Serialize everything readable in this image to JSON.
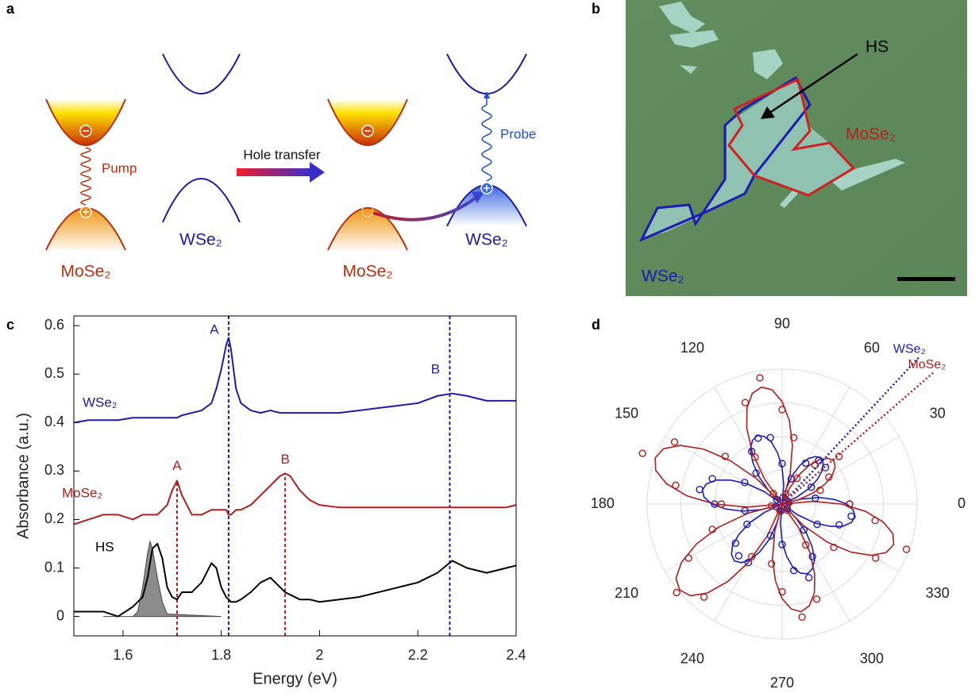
{
  "figure": {
    "panels": [
      "a",
      "b",
      "c",
      "d"
    ],
    "diagram": {
      "pump": "Pump",
      "transfer": "Hole transfer",
      "probe": "Probe",
      "materials": [
        "MoSe₂",
        "WSe₂",
        "MoSe₂",
        "WSe₂"
      ]
    },
    "image": {
      "pointer": "HS",
      "materials": [
        "MoSe₂",
        "WSe₂"
      ]
    }
  },
  "chart_data": [
    {
      "type": "line",
      "xlabel": "Energy (eV)",
      "ylabel": "Absorbance (a.u.)",
      "x": [
        1.5,
        1.53,
        1.56,
        1.59,
        1.62,
        1.64,
        1.65,
        1.66,
        1.67,
        1.68,
        1.69,
        1.7,
        1.71,
        1.72,
        1.74,
        1.76,
        1.78,
        1.79,
        1.8,
        1.81,
        1.815,
        1.82,
        1.83,
        1.84,
        1.86,
        1.88,
        1.9,
        1.92,
        1.93,
        1.94,
        1.96,
        1.98,
        2.0,
        2.04,
        2.08,
        2.12,
        2.16,
        2.2,
        2.24,
        2.27,
        2.3,
        2.34,
        2.38,
        2.4
      ],
      "series": [
        {
          "name": "WSe₂",
          "color": "#1c1ca6",
          "values": [
            0.4,
            0.405,
            0.405,
            0.405,
            0.41,
            0.41,
            0.41,
            0.41,
            0.41,
            0.41,
            0.41,
            0.41,
            0.41,
            0.415,
            0.42,
            0.425,
            0.44,
            0.47,
            0.51,
            0.56,
            0.575,
            0.55,
            0.47,
            0.44,
            0.425,
            0.42,
            0.425,
            0.42,
            0.42,
            0.42,
            0.42,
            0.42,
            0.42,
            0.42,
            0.425,
            0.43,
            0.435,
            0.44,
            0.455,
            0.46,
            0.455,
            0.445,
            0.445,
            0.445
          ]
        },
        {
          "name": "MoSe₂",
          "color": "#b01d1d",
          "values": [
            0.19,
            0.2,
            0.21,
            0.21,
            0.2,
            0.21,
            0.21,
            0.21,
            0.21,
            0.22,
            0.23,
            0.26,
            0.28,
            0.25,
            0.21,
            0.21,
            0.22,
            0.22,
            0.22,
            0.22,
            0.21,
            0.21,
            0.22,
            0.22,
            0.23,
            0.25,
            0.27,
            0.29,
            0.295,
            0.29,
            0.26,
            0.24,
            0.23,
            0.225,
            0.225,
            0.225,
            0.225,
            0.225,
            0.225,
            0.225,
            0.225,
            0.225,
            0.225,
            0.23
          ]
        },
        {
          "name": "HS",
          "color": "#000000",
          "values": [
            0.01,
            0.01,
            0.01,
            0,
            0.02,
            0.04,
            0.08,
            0.14,
            0.15,
            0.12,
            0.06,
            0.04,
            0.035,
            0.05,
            0.05,
            0.07,
            0.11,
            0.1,
            0.06,
            0.04,
            0.035,
            0.03,
            0.03,
            0.035,
            0.05,
            0.07,
            0.08,
            0.06,
            0.05,
            0.045,
            0.035,
            0.035,
            0.03,
            0.035,
            0.04,
            0.05,
            0.06,
            0.07,
            0.09,
            0.115,
            0.1,
            0.09,
            0.1,
            0.105
          ]
        }
      ],
      "shaded": {
        "color": "#8c8c8c",
        "x": [
          1.56,
          1.62,
          1.63,
          1.64,
          1.65,
          1.655,
          1.66,
          1.67,
          1.68,
          1.69,
          1.8
        ],
        "values": [
          0,
          0,
          0.01,
          0.06,
          0.13,
          0.155,
          0.14,
          0.08,
          0.03,
          0.005,
          0
        ]
      },
      "markers": [
        {
          "label": "A",
          "x": 1.815,
          "y_top": 0.62,
          "color": "#1c1ca6"
        },
        {
          "label": "B",
          "x": 2.265,
          "y_top": 0.62,
          "color": "#1c1ca6"
        },
        {
          "label": "A",
          "x": 1.71,
          "y_top": 0.28,
          "color": "#b01d1d"
        },
        {
          "label": "B",
          "x": 1.93,
          "y_top": 0.29,
          "color": "#b01d1d"
        }
      ],
      "xlim": [
        1.5,
        2.4
      ],
      "ylim": [
        -0.04,
        0.62
      ],
      "xticks": [
        1.6,
        1.8,
        2,
        2.2,
        2.4
      ],
      "yticks": [
        0,
        0.1,
        0.2,
        0.3,
        0.4,
        0.5,
        0.6
      ]
    },
    {
      "type": "polar",
      "theta": [
        0,
        5,
        10,
        15,
        20,
        25,
        30,
        35,
        40,
        45,
        50,
        55,
        60,
        65,
        70,
        75,
        80,
        85,
        90,
        95,
        100,
        105,
        110,
        115,
        120,
        125,
        130,
        135,
        140,
        145,
        150,
        155,
        160,
        165,
        170,
        175,
        180,
        185,
        190,
        195,
        200,
        205,
        210,
        215,
        220,
        225,
        230,
        235,
        240,
        245,
        250,
        255,
        260,
        265,
        270,
        275,
        280,
        285,
        290,
        295,
        300,
        305,
        310,
        315,
        320,
        325,
        330,
        335,
        340,
        345,
        350,
        355
      ],
      "series": [
        {
          "name": "WSe₂",
          "color": "#1c1cb4",
          "axis_angle": 47,
          "values": [
            0.48,
            0.39,
            0.28,
            0.14,
            0,
            0.12,
            0.23,
            0.32,
            0.39,
            0.43,
            0.45,
            0.43,
            0.39,
            0.32,
            0.23,
            0.12,
            0,
            0.14,
            0.27,
            0.38,
            0.47,
            0.52,
            0.54,
            0.52,
            0.47,
            0.38,
            0.27,
            0.14,
            0,
            0.16,
            0.3,
            0.42,
            0.52,
            0.58,
            0.6,
            0.58,
            0.52,
            0.42,
            0.3,
            0.16,
            0,
            0.14,
            0.28,
            0.39,
            0.48,
            0.53,
            0.55,
            0.53,
            0.48,
            0.39,
            0.28,
            0.14,
            0,
            0.14,
            0.28,
            0.39,
            0.48,
            0.53,
            0.55,
            0.53,
            0.48,
            0.39,
            0.28,
            0.14,
            0,
            0.14,
            0.28,
            0.39,
            0.48,
            0.53,
            0.55,
            0.53
          ]
        },
        {
          "name": "MoSe₂",
          "color": "#b01d1d",
          "axis_angle": 41,
          "values": [
            0.44,
            0.23,
            0,
            0.13,
            0.25,
            0.35,
            0.43,
            0.48,
            0.5,
            0.48,
            0.43,
            0.35,
            0.25,
            0.13,
            0,
            0.23,
            0.44,
            0.62,
            0.76,
            0.85,
            0.88,
            0.85,
            0.76,
            0.62,
            0.44,
            0.23,
            0,
            0.26,
            0.5,
            0.71,
            0.87,
            0.97,
            1,
            0.97,
            0.87,
            0.71,
            0.5,
            0.26,
            0,
            0.26,
            0.5,
            0.7,
            0.86,
            0.96,
            0.99,
            0.96,
            0.86,
            0.7,
            0.5,
            0.26,
            0,
            0.21,
            0.41,
            0.57,
            0.7,
            0.78,
            0.81,
            0.78,
            0.7,
            0.57,
            0.41,
            0.21,
            0,
            0.23,
            0.44,
            0.62,
            0.76,
            0.85,
            0.88,
            0.85,
            0.76,
            0.62
          ]
        }
      ],
      "points": {
        "theta": [
          0,
          10,
          20,
          30,
          40,
          50,
          60,
          70,
          80,
          90,
          100,
          110,
          120,
          130,
          140,
          150,
          160,
          170,
          180,
          190,
          200,
          210,
          220,
          230,
          240,
          250,
          260,
          270,
          280,
          290,
          300,
          310,
          320,
          330,
          340,
          350
        ],
        "series": [
          {
            "color": "#1c1cb4",
            "values": [
              0.5,
              0.25,
              0.05,
              0.25,
              0.42,
              0.42,
              0.35,
              0.2,
              0.05,
              0.3,
              0.5,
              0.52,
              0.45,
              0.3,
              0.05,
              0.32,
              0.55,
              0.62,
              0.5,
              0.28,
              0.05,
              0.3,
              0.45,
              0.5,
              0.5,
              0.25,
              0.05,
              0.3,
              0.5,
              0.58,
              0.45,
              0.25,
              0.05,
              0.3,
              0.45,
              0.52
            ]
          },
          {
            "color": "#b01d1d",
            "values": [
              0.5,
              0.05,
              0.3,
              0.4,
              0.55,
              0.38,
              0.22,
              0.08,
              0.5,
              0.7,
              0.95,
              0.8,
              0.4,
              0.1,
              0.55,
              0.92,
              1.1,
              0.8,
              0.45,
              0.08,
              0.55,
              0.8,
              1.02,
              0.9,
              0.45,
              0.05,
              0.45,
              0.65,
              0.85,
              0.75,
              0.35,
              0.06,
              0.5,
              0.8,
              0.98,
              0.7
            ]
          }
        ]
      },
      "thetaticks": [
        0,
        30,
        60,
        90,
        120,
        150,
        180,
        210,
        240,
        270,
        300,
        330
      ],
      "rlim": [
        0,
        1
      ],
      "rticks": [
        0.25,
        0.5,
        0.75,
        1
      ]
    }
  ]
}
